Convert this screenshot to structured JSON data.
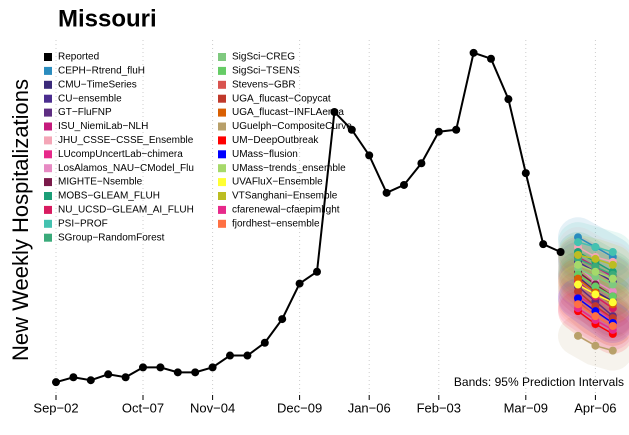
{
  "chart_data": {
    "type": "line",
    "title": "Missouri",
    "ylabel": "New Weekly Hospitalizations",
    "annotation": "Bands: 95% Prediction Intervals",
    "grid": true,
    "ylim": [
      0,
      360
    ],
    "categories": [
      "Sep−02",
      null,
      null,
      null,
      null,
      "Oct−07",
      null,
      null,
      null,
      "Nov−04",
      null,
      null,
      null,
      null,
      "Dec−09",
      null,
      null,
      null,
      "Jan−06",
      null,
      null,
      null,
      "Feb−03",
      null,
      null,
      null,
      null,
      "Mar−09",
      null,
      null,
      null,
      "Apr−06",
      null
    ],
    "series": [
      {
        "name": "Reported",
        "color": "#000000",
        "values": [
          13,
          18,
          15,
          21,
          18,
          28,
          28,
          23,
          23,
          28,
          40,
          40,
          53,
          77,
          113,
          125,
          287,
          269,
          243,
          205,
          213,
          235,
          267,
          269,
          347,
          341,
          300,
          225,
          153,
          145,
          null,
          null,
          null
        ]
      },
      {
        "name": "CEPH−Rtrend_fluH",
        "color": "#2b8cbe",
        "values": [
          null,
          null,
          null,
          null,
          null,
          null,
          null,
          null,
          null,
          null,
          null,
          null,
          null,
          null,
          null,
          null,
          null,
          null,
          null,
          null,
          null,
          null,
          null,
          null,
          null,
          null,
          null,
          null,
          null,
          null,
          160,
          150,
          140
        ]
      },
      {
        "name": "CMU−TimeSeries",
        "color": "#3b2a7a",
        "values": [
          null,
          null,
          null,
          null,
          null,
          null,
          null,
          null,
          null,
          null,
          null,
          null,
          null,
          null,
          null,
          null,
          null,
          null,
          null,
          null,
          null,
          null,
          null,
          null,
          null,
          null,
          null,
          null,
          null,
          null,
          120,
          105,
          95
        ]
      },
      {
        "name": "CU−ensemble",
        "color": "#4b2d8f",
        "values": [
          null,
          null,
          null,
          null,
          null,
          null,
          null,
          null,
          null,
          null,
          null,
          null,
          null,
          null,
          null,
          null,
          null,
          null,
          null,
          null,
          null,
          null,
          null,
          null,
          null,
          null,
          null,
          null,
          null,
          null,
          135,
          125,
          115
        ]
      },
      {
        "name": "GT−FluFNP",
        "color": "#5e2d82",
        "values": [
          null,
          null,
          null,
          null,
          null,
          null,
          null,
          null,
          null,
          null,
          null,
          null,
          null,
          null,
          null,
          null,
          null,
          null,
          null,
          null,
          null,
          null,
          null,
          null,
          null,
          null,
          null,
          null,
          null,
          null,
          110,
          95,
          80
        ]
      },
      {
        "name": "ISU_NiemiLab−NLH",
        "color": "#c51b7d",
        "values": [
          null,
          null,
          null,
          null,
          null,
          null,
          null,
          null,
          null,
          null,
          null,
          null,
          null,
          null,
          null,
          null,
          null,
          null,
          null,
          null,
          null,
          null,
          null,
          null,
          null,
          null,
          null,
          null,
          null,
          null,
          140,
          130,
          120
        ]
      },
      {
        "name": "JHU_CSSE−CSSE_Ensemble",
        "color": "#f4a6b7",
        "values": [
          null,
          null,
          null,
          null,
          null,
          null,
          null,
          null,
          null,
          null,
          null,
          null,
          null,
          null,
          null,
          null,
          null,
          null,
          null,
          null,
          null,
          null,
          null,
          null,
          null,
          null,
          null,
          null,
          null,
          null,
          150,
          140,
          135
        ]
      },
      {
        "name": "LUcompUncertLab−chimera",
        "color": "#e7298a",
        "values": [
          null,
          null,
          null,
          null,
          null,
          null,
          null,
          null,
          null,
          null,
          null,
          null,
          null,
          null,
          null,
          null,
          null,
          null,
          null,
          null,
          null,
          null,
          null,
          null,
          null,
          null,
          null,
          null,
          null,
          null,
          100,
          90,
          75
        ]
      },
      {
        "name": "LosAlamos_NAU−CModel_Flu",
        "color": "#e78ac3",
        "values": [
          null,
          null,
          null,
          null,
          null,
          null,
          null,
          null,
          null,
          null,
          null,
          null,
          null,
          null,
          null,
          null,
          null,
          null,
          null,
          null,
          null,
          null,
          null,
          null,
          null,
          null,
          null,
          null,
          null,
          null,
          130,
          115,
          105
        ]
      },
      {
        "name": "MIGHTE−Nsemble",
        "color": "#7a1a4a",
        "values": [
          null,
          null,
          null,
          null,
          null,
          null,
          null,
          null,
          null,
          null,
          null,
          null,
          null,
          null,
          null,
          null,
          null,
          null,
          null,
          null,
          null,
          null,
          null,
          null,
          null,
          null,
          null,
          null,
          null,
          null,
          125,
          112,
          100
        ]
      },
      {
        "name": "MOBS−GLEAM_FLUH",
        "color": "#1b9e77",
        "values": [
          null,
          null,
          null,
          null,
          null,
          null,
          null,
          null,
          null,
          null,
          null,
          null,
          null,
          null,
          null,
          null,
          null,
          null,
          null,
          null,
          null,
          null,
          null,
          null,
          null,
          null,
          null,
          null,
          null,
          null,
          145,
          135,
          125
        ]
      },
      {
        "name": "NU_UCSD−GLEAM_AI_FLUH",
        "color": "#d81b60",
        "values": [
          null,
          null,
          null,
          null,
          null,
          null,
          null,
          null,
          null,
          null,
          null,
          null,
          null,
          null,
          null,
          null,
          null,
          null,
          null,
          null,
          null,
          null,
          null,
          null,
          null,
          null,
          null,
          null,
          null,
          null,
          115,
          100,
          88
        ]
      },
      {
        "name": "PSI−PROF",
        "color": "#44c2b0",
        "values": [
          null,
          null,
          null,
          null,
          null,
          null,
          null,
          null,
          null,
          null,
          null,
          null,
          null,
          null,
          null,
          null,
          null,
          null,
          null,
          null,
          null,
          null,
          null,
          null,
          null,
          null,
          null,
          null,
          null,
          null,
          155,
          150,
          145
        ]
      },
      {
        "name": "SGroup−RandomForest",
        "color": "#3aaa7a",
        "values": [
          null,
          null,
          null,
          null,
          null,
          null,
          null,
          null,
          null,
          null,
          null,
          null,
          null,
          null,
          null,
          null,
          null,
          null,
          null,
          null,
          null,
          null,
          null,
          null,
          null,
          null,
          null,
          null,
          null,
          null,
          138,
          130,
          122
        ]
      },
      {
        "name": "SigSci−CREG",
        "color": "#7fc97f",
        "values": [
          null,
          null,
          null,
          null,
          null,
          null,
          null,
          null,
          null,
          null,
          null,
          null,
          null,
          null,
          null,
          null,
          null,
          null,
          null,
          null,
          null,
          null,
          null,
          null,
          null,
          null,
          null,
          null,
          null,
          null,
          128,
          120,
          112
        ]
      },
      {
        "name": "SigSci−TSENS",
        "color": "#66cc66",
        "values": [
          null,
          null,
          null,
          null,
          null,
          null,
          null,
          null,
          null,
          null,
          null,
          null,
          null,
          null,
          null,
          null,
          null,
          null,
          null,
          null,
          null,
          null,
          null,
          null,
          null,
          null,
          null,
          null,
          null,
          null,
          122,
          110,
          100
        ]
      },
      {
        "name": "Stevens−GBR",
        "color": "#d9534f",
        "values": [
          null,
          null,
          null,
          null,
          null,
          null,
          null,
          null,
          null,
          null,
          null,
          null,
          null,
          null,
          null,
          null,
          null,
          null,
          null,
          null,
          null,
          null,
          null,
          null,
          null,
          null,
          null,
          null,
          null,
          null,
          95,
          80,
          70
        ]
      },
      {
        "name": "UGA_flucast−Copycat",
        "color": "#c0392b",
        "values": [
          null,
          null,
          null,
          null,
          null,
          null,
          null,
          null,
          null,
          null,
          null,
          null,
          null,
          null,
          null,
          null,
          null,
          null,
          null,
          null,
          null,
          null,
          null,
          null,
          null,
          null,
          null,
          null,
          null,
          null,
          105,
          90,
          78
        ]
      },
      {
        "name": "UGA_flucast−INFLAenza",
        "color": "#d95f02",
        "values": [
          null,
          null,
          null,
          null,
          null,
          null,
          null,
          null,
          null,
          null,
          null,
          null,
          null,
          null,
          null,
          null,
          null,
          null,
          null,
          null,
          null,
          null,
          null,
          null,
          null,
          null,
          null,
          null,
          null,
          null,
          118,
          104,
          92
        ]
      },
      {
        "name": "UGuelph−CompositeCurve",
        "color": "#b8a06a",
        "values": [
          null,
          null,
          null,
          null,
          null,
          null,
          null,
          null,
          null,
          null,
          null,
          null,
          null,
          null,
          null,
          null,
          null,
          null,
          null,
          null,
          null,
          null,
          null,
          null,
          null,
          null,
          null,
          null,
          null,
          null,
          60,
          50,
          45
        ]
      },
      {
        "name": "UM−DeepOutbreak",
        "color": "#ff0000",
        "values": [
          null,
          null,
          null,
          null,
          null,
          null,
          null,
          null,
          null,
          null,
          null,
          null,
          null,
          null,
          null,
          null,
          null,
          null,
          null,
          null,
          null,
          null,
          null,
          null,
          null,
          null,
          null,
          null,
          null,
          null,
          85,
          72,
          62
        ]
      },
      {
        "name": "UMass−flusion",
        "color": "#0000ff",
        "values": [
          null,
          null,
          null,
          null,
          null,
          null,
          null,
          null,
          null,
          null,
          null,
          null,
          null,
          null,
          null,
          null,
          null,
          null,
          null,
          null,
          null,
          null,
          null,
          null,
          null,
          null,
          null,
          null,
          null,
          null,
          98,
          85,
          73
        ]
      },
      {
        "name": "UMass−trends_ensemble",
        "color": "#a6d96a",
        "values": [
          null,
          null,
          null,
          null,
          null,
          null,
          null,
          null,
          null,
          null,
          null,
          null,
          null,
          null,
          null,
          null,
          null,
          null,
          null,
          null,
          null,
          null,
          null,
          null,
          null,
          null,
          null,
          null,
          null,
          null,
          132,
          125,
          118
        ]
      },
      {
        "name": "UVAFluX−Ensemble",
        "color": "#ffff33",
        "values": [
          null,
          null,
          null,
          null,
          null,
          null,
          null,
          null,
          null,
          null,
          null,
          null,
          null,
          null,
          null,
          null,
          null,
          null,
          null,
          null,
          null,
          null,
          null,
          null,
          null,
          null,
          null,
          null,
          null,
          null,
          112,
          102,
          94
        ]
      },
      {
        "name": "VTSanghani−Ensemble",
        "color": "#bcbd22",
        "values": [
          null,
          null,
          null,
          null,
          null,
          null,
          null,
          null,
          null,
          null,
          null,
          null,
          null,
          null,
          null,
          null,
          null,
          null,
          null,
          null,
          null,
          null,
          null,
          null,
          null,
          null,
          null,
          null,
          null,
          null,
          142,
          138,
          132
        ]
      },
      {
        "name": "cfarenewal−cfaepimlight",
        "color": "#e7298a",
        "values": [
          null,
          null,
          null,
          null,
          null,
          null,
          null,
          null,
          null,
          null,
          null,
          null,
          null,
          null,
          null,
          null,
          null,
          null,
          null,
          null,
          null,
          null,
          null,
          null,
          null,
          null,
          null,
          null,
          null,
          null,
          88,
          76,
          66
        ]
      },
      {
        "name": "fjordhest−ensemble",
        "color": "#ff7043",
        "values": [
          null,
          null,
          null,
          null,
          null,
          null,
          null,
          null,
          null,
          null,
          null,
          null,
          null,
          null,
          null,
          null,
          null,
          null,
          null,
          null,
          null,
          null,
          null,
          null,
          null,
          null,
          null,
          null,
          null,
          null,
          92,
          80,
          70
        ]
      }
    ]
  }
}
